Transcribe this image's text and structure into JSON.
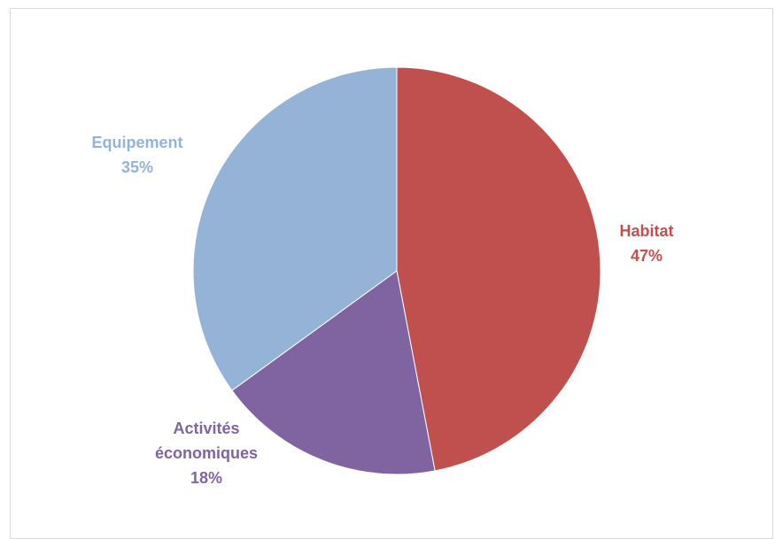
{
  "chart_data": {
    "type": "pie",
    "title": "",
    "slices": [
      {
        "label": "Habitat",
        "value": 47,
        "value_label": "47%",
        "color": "#c0504d"
      },
      {
        "label": "Activités économiques",
        "value": 18,
        "value_label": "18%",
        "color": "#8064a2"
      },
      {
        "label": "Equipement",
        "value": 35,
        "value_label": "35%",
        "color": "#95b3d7"
      }
    ],
    "start_angle_deg": 0,
    "direction": "clockwise",
    "legend": "none",
    "data_labels": "outside"
  }
}
